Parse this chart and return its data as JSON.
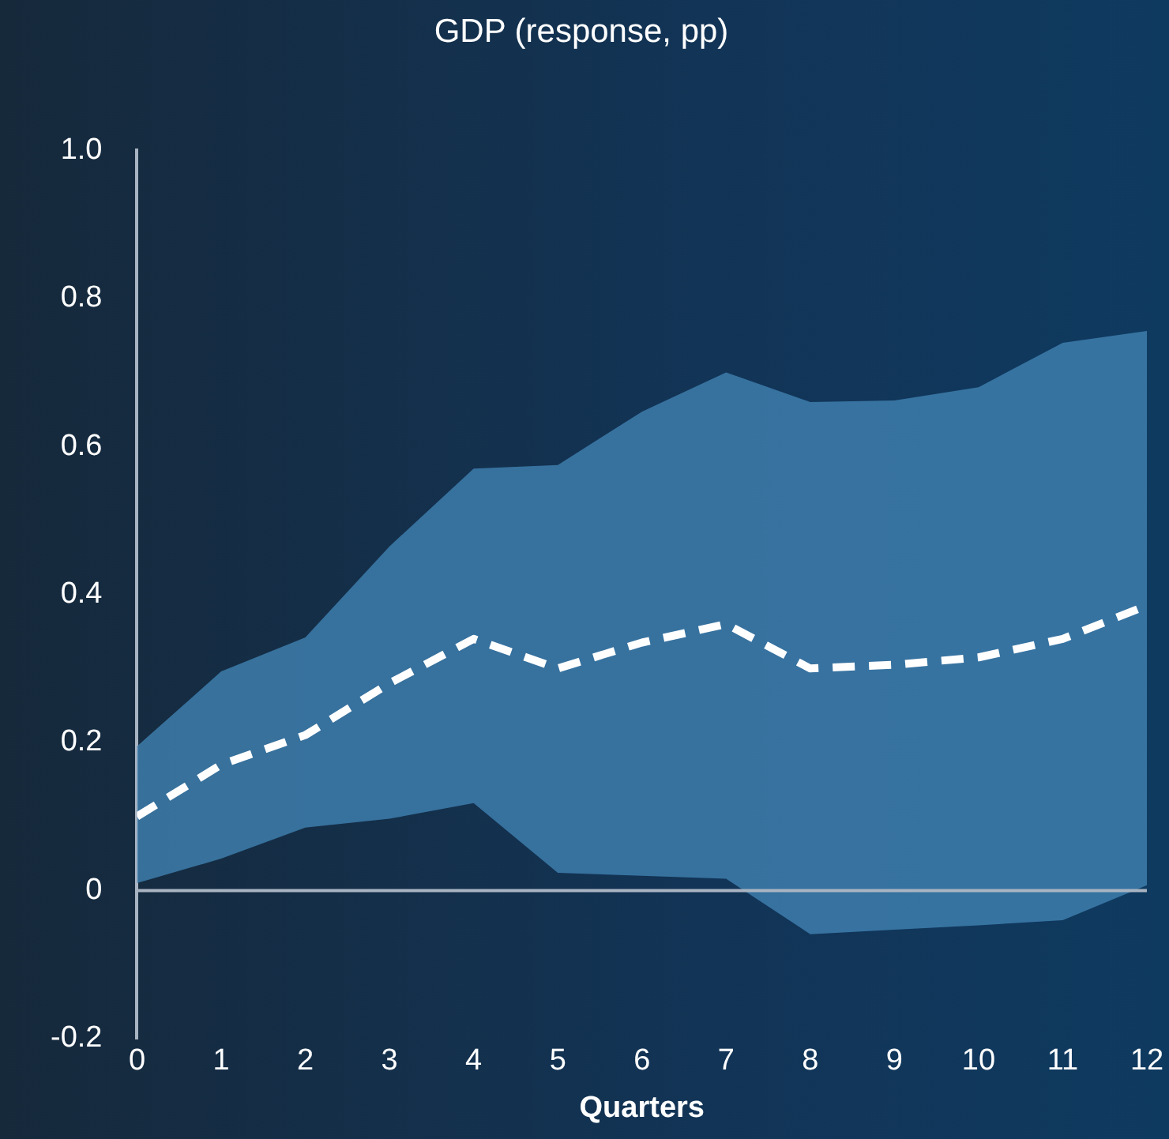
{
  "chart_data": {
    "type": "line",
    "title": "GDP (response, pp)",
    "xlabel": "Quarters",
    "x": [
      0,
      1,
      2,
      3,
      4,
      5,
      6,
      7,
      8,
      9,
      10,
      11,
      12
    ],
    "series": [
      {
        "color": "#ffffff",
        "line_style": "dashed",
        "values": [
          0.1,
          0.17,
          0.21,
          0.28,
          0.34,
          0.3,
          0.335,
          0.36,
          0.3,
          0.305,
          0.315,
          0.34,
          0.385
        ],
        "lower": [
          0.01,
          0.043,
          0.085,
          0.097,
          0.118,
          0.024,
          0.02,
          0.016,
          -0.059,
          -0.053,
          -0.047,
          -0.04,
          0.007
        ],
        "upper": [
          0.195,
          0.296,
          0.342,
          0.465,
          0.57,
          0.575,
          0.647,
          0.7,
          0.66,
          0.662,
          0.68,
          0.74,
          0.756
        ]
      }
    ],
    "xlim": [
      0,
      12
    ],
    "xticks": [
      0,
      1,
      2,
      3,
      4,
      5,
      6,
      7,
      8,
      9,
      10,
      11,
      12
    ],
    "ylim": [
      -0.2,
      1.0
    ],
    "yticks": [
      {
        "value": -0.2,
        "label": "-0.2"
      },
      {
        "value": 0,
        "label": "0"
      },
      {
        "value": 0.2,
        "label": "0.2"
      },
      {
        "value": 0.4,
        "label": "0.4"
      },
      {
        "value": 0.6,
        "label": "0.6"
      },
      {
        "value": 0.8,
        "label": "0.8"
      },
      {
        "value": 1.0,
        "label": "1.0"
      }
    ],
    "ref_lines": [
      {
        "axis": "y",
        "value": 0,
        "color": "#a9b4c2"
      }
    ],
    "grid": false,
    "legend": false,
    "marker": "none"
  }
}
